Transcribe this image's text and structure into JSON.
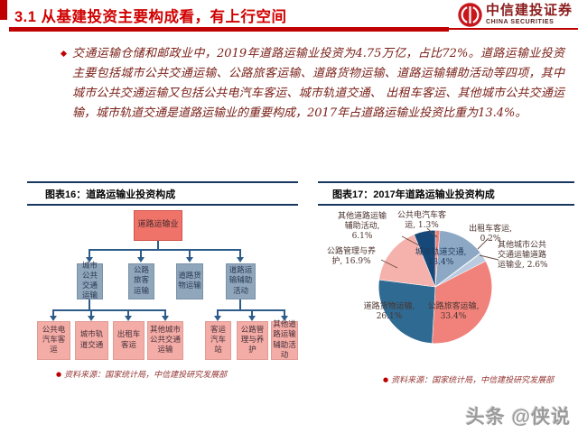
{
  "slide": {
    "title": "3.1 从基建投资主要构成看，有上行空间",
    "logo": {
      "name_cn": "中信建投证券",
      "name_en": "CHINA SECURITIES"
    },
    "bullet_paragraph": "交通运输仓储和邮政业中，2019年道路运输业投资为4.75万亿，占比72%。道路运输业投资主要包括城市公共交通运输、公路旅客运输、道路货物运输、道路运输辅助活动等四项，其中城市公共交通运输又包括公共电汽车客运、城市轨道交通、 出租车客运、其他城市公共交通运输，城市轨道交通是道路运输业的重要构成，2017年占道路运输业投资比重为13.4%。",
    "watermark": "头条 @侠说"
  },
  "figure16": {
    "title": "图表16：道路运输业投资构成",
    "source": "资料来源：国家统计局，中信建投研究发展部",
    "flowchart": {
      "root": "道路运输业",
      "level2": [
        "城市公共交通运输",
        "公路旅客运输",
        "道路货物运输",
        "道路运输辅助活动"
      ],
      "level3_left": [
        "公共电汽车客运",
        "城市轨道交通",
        "出租车客运",
        "其他城市公共交通运输"
      ],
      "level3_right": [
        "客运汽车站",
        "公路管理与养护",
        "其他道路运输辅助活动"
      ]
    }
  },
  "figure17": {
    "title": "图表17：2017年道路运输业投资构成",
    "source": "资料来源：国家统计局，中信建投研究发展部"
  },
  "chart_data": {
    "type": "pie",
    "title": "2017年道路运输业投资构成",
    "direction": "clockwise",
    "start_angle_deg": 0,
    "legend": "none",
    "slices": [
      {
        "label": "公共电汽车客运",
        "value": 1.3,
        "color": "#F0827B"
      },
      {
        "label": "城市轨道交通",
        "value": 13.4,
        "color": "#8CA8C4"
      },
      {
        "label": "出租车客运",
        "value": 0.2,
        "color": "#C9C2BD"
      },
      {
        "label": "其他城市公共交通运输道路运输业",
        "value": 2.6,
        "color": "#BACBE0"
      },
      {
        "label": "公路旅客运输",
        "value": 33.4,
        "color": "#F0827B"
      },
      {
        "label": "道路货物运输",
        "value": 26.1,
        "color": "#2F6A93"
      },
      {
        "label": "公路管理与养护",
        "value": 16.9,
        "color": "#F5B2AC"
      },
      {
        "label": "其他道路运输辅助活动",
        "value": 6.1,
        "color": "#16497A"
      }
    ]
  },
  "colors": {
    "accent_red": "#C00000",
    "line_navy": "#17375E"
  }
}
